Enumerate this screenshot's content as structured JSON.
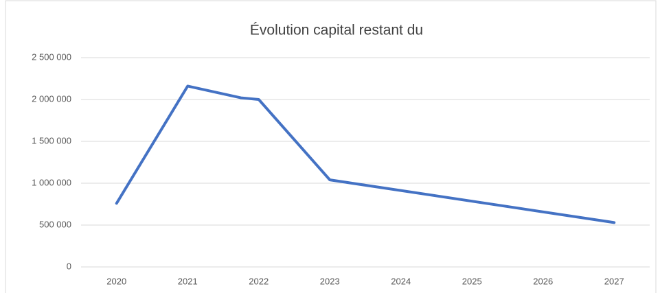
{
  "chart_data": {
    "type": "line",
    "title": "Évolution capital restant du",
    "x": [
      2020,
      2021,
      2021.75,
      2022,
      2023,
      2027
    ],
    "series": [
      {
        "name": "Capital restant du",
        "color": "#4472c4",
        "values": [
          760000,
          2160000,
          2020000,
          2000000,
          1040000,
          530000
        ]
      }
    ],
    "xlim": [
      2019.5,
      2027.5
    ],
    "xticks": [
      2020,
      2021,
      2022,
      2023,
      2024,
      2025,
      2026,
      2027
    ],
    "ylim": [
      0,
      2500000
    ],
    "yticks": [
      0,
      {
        "value": 500000,
        "label": "500 000"
      },
      {
        "value": 1000000,
        "label": "1 000 000"
      },
      {
        "value": 1500000,
        "label": "1 500 000"
      },
      {
        "value": 2000000,
        "label": "2 000 000"
      },
      {
        "value": 2500000,
        "label": "2 500 000"
      }
    ],
    "grid": true
  }
}
